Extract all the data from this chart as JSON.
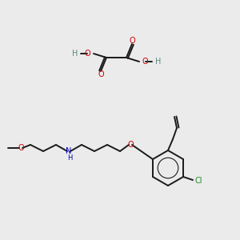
{
  "bg_color": "#ebebeb",
  "atom_colors": {
    "O": "#cc0000",
    "N": "#0000bb",
    "Cl": "#228822",
    "H": "#5a8a7a",
    "C": "#000000"
  },
  "bond_color": "#1a1a1a",
  "bond_width": 1.4,
  "font_size_atom": 7.0
}
